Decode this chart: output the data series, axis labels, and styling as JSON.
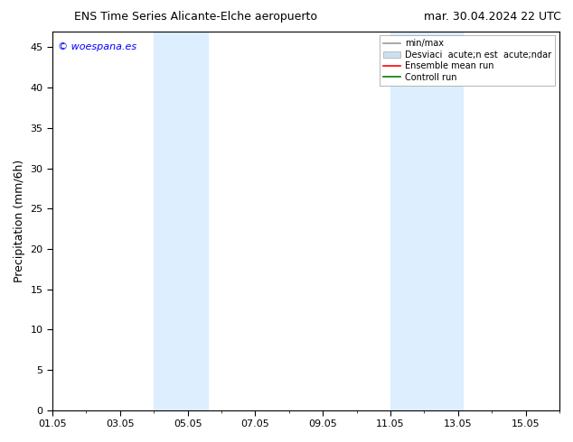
{
  "title_left": "ENS Time Series Alicante-Elche aeropuerto",
  "title_right": "mar. 30.04.2024 22 UTC",
  "ylabel": "Precipitation (mm/6h)",
  "watermark": "© woespana.es",
  "ylim": [
    0,
    47
  ],
  "yticks": [
    0,
    5,
    10,
    15,
    20,
    25,
    30,
    35,
    40,
    45
  ],
  "x_min": 1.0,
  "x_max": 16.0,
  "xtick_labels": [
    "01.05",
    "03.05",
    "05.05",
    "07.05",
    "09.05",
    "11.05",
    "13.05",
    "15.05"
  ],
  "xtick_positions": [
    1,
    3,
    5,
    7,
    9,
    11,
    13,
    15
  ],
  "shade_regions": [
    {
      "start_day": 4.0,
      "end_day": 5.6
    },
    {
      "start_day": 11.0,
      "end_day": 13.15
    }
  ],
  "shade_color": "#ddeeff",
  "background_color": "#ffffff",
  "title_fontsize": 9,
  "tick_fontsize": 8,
  "ylabel_fontsize": 9,
  "legend_fontsize": 7,
  "watermark_fontsize": 8,
  "legend_label_minmax": "min/max",
  "legend_label_std": "Desviaci  acute;n est  acute;ndar",
  "legend_label_ensemble": "Ensemble mean run",
  "legend_label_control": "Controll run",
  "legend_minmax_color": "#999999",
  "legend_std_facecolor": "#cce0f0",
  "legend_std_edgecolor": "#aaaaaa",
  "legend_ensemble_color": "red",
  "legend_control_color": "green"
}
